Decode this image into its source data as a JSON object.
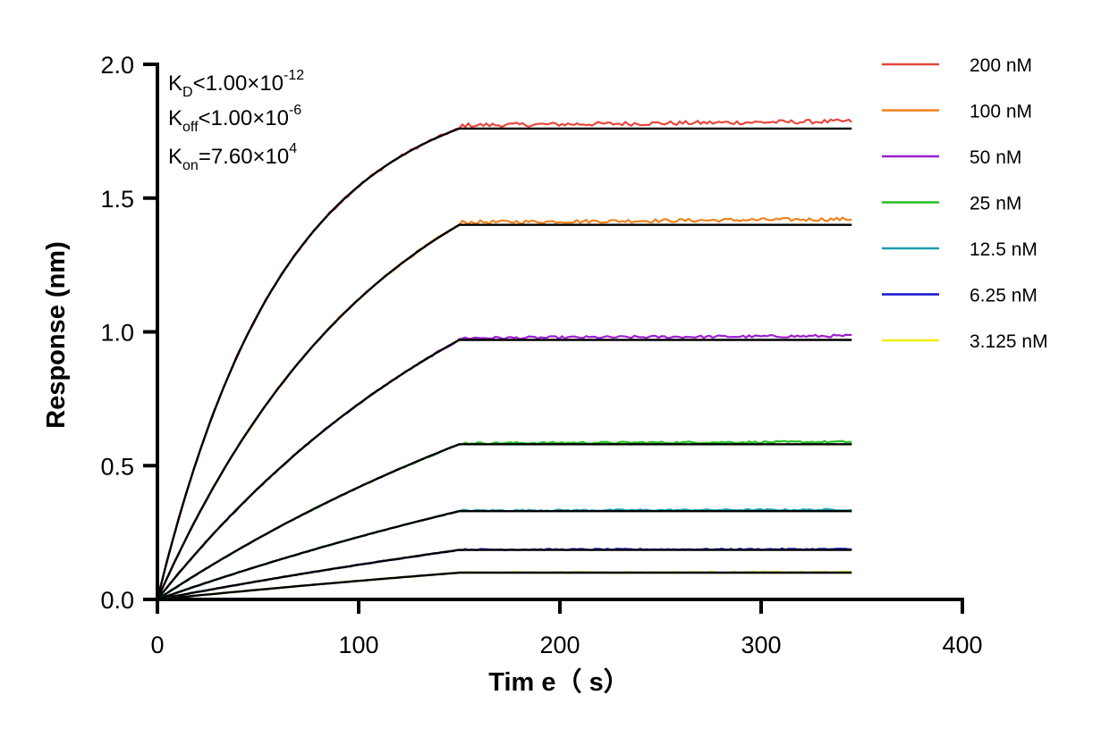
{
  "chart_data": {
    "type": "line",
    "xlabel": "Tim e（ s）",
    "ylabel": "Response (nm)",
    "xlim": [
      0,
      400
    ],
    "ylim": [
      0,
      2.0
    ],
    "x_ticks": [
      0,
      100,
      200,
      300,
      400
    ],
    "x_tick_labels": [
      "0",
      "100",
      "200",
      "300",
      "400"
    ],
    "y_ticks": [
      0,
      0.5,
      1.0,
      1.5,
      2.0
    ],
    "y_tick_labels": [
      "0.0",
      "0.5",
      "1.0",
      "1.5",
      "2.0"
    ],
    "grid": false,
    "legend_position": "right",
    "association_end": 150,
    "x_end": 345,
    "series": [
      {
        "name": "200 nM",
        "color": "#e8473d",
        "plateau": 1.76
      },
      {
        "name": "100 nM",
        "color": "#f0821e",
        "plateau": 1.4
      },
      {
        "name": "50 nM",
        "color": "#9b1fd0",
        "plateau": 0.97
      },
      {
        "name": "25 nM",
        "color": "#22bf22",
        "plateau": 0.58
      },
      {
        "name": "12.5 nM",
        "color": "#1a9eb0",
        "plateau": 0.33
      },
      {
        "name": "6.25 nM",
        "color": "#1414d2",
        "plateau": 0.185
      },
      {
        "name": "3.125 nM",
        "color": "#f2ec10",
        "plateau": 0.1
      }
    ],
    "fit_color": "#000000",
    "annotations": {
      "kd": {
        "main": "K",
        "sub": "D",
        "text": "<1.00×10",
        "sup": "-12"
      },
      "koff": {
        "main": "K",
        "sub": "off",
        "text": "<1.00×10",
        "sup": "-6"
      },
      "kon": {
        "main": "K",
        "sub": "on",
        "text": "=7.60×10",
        "sup": "4"
      }
    }
  }
}
